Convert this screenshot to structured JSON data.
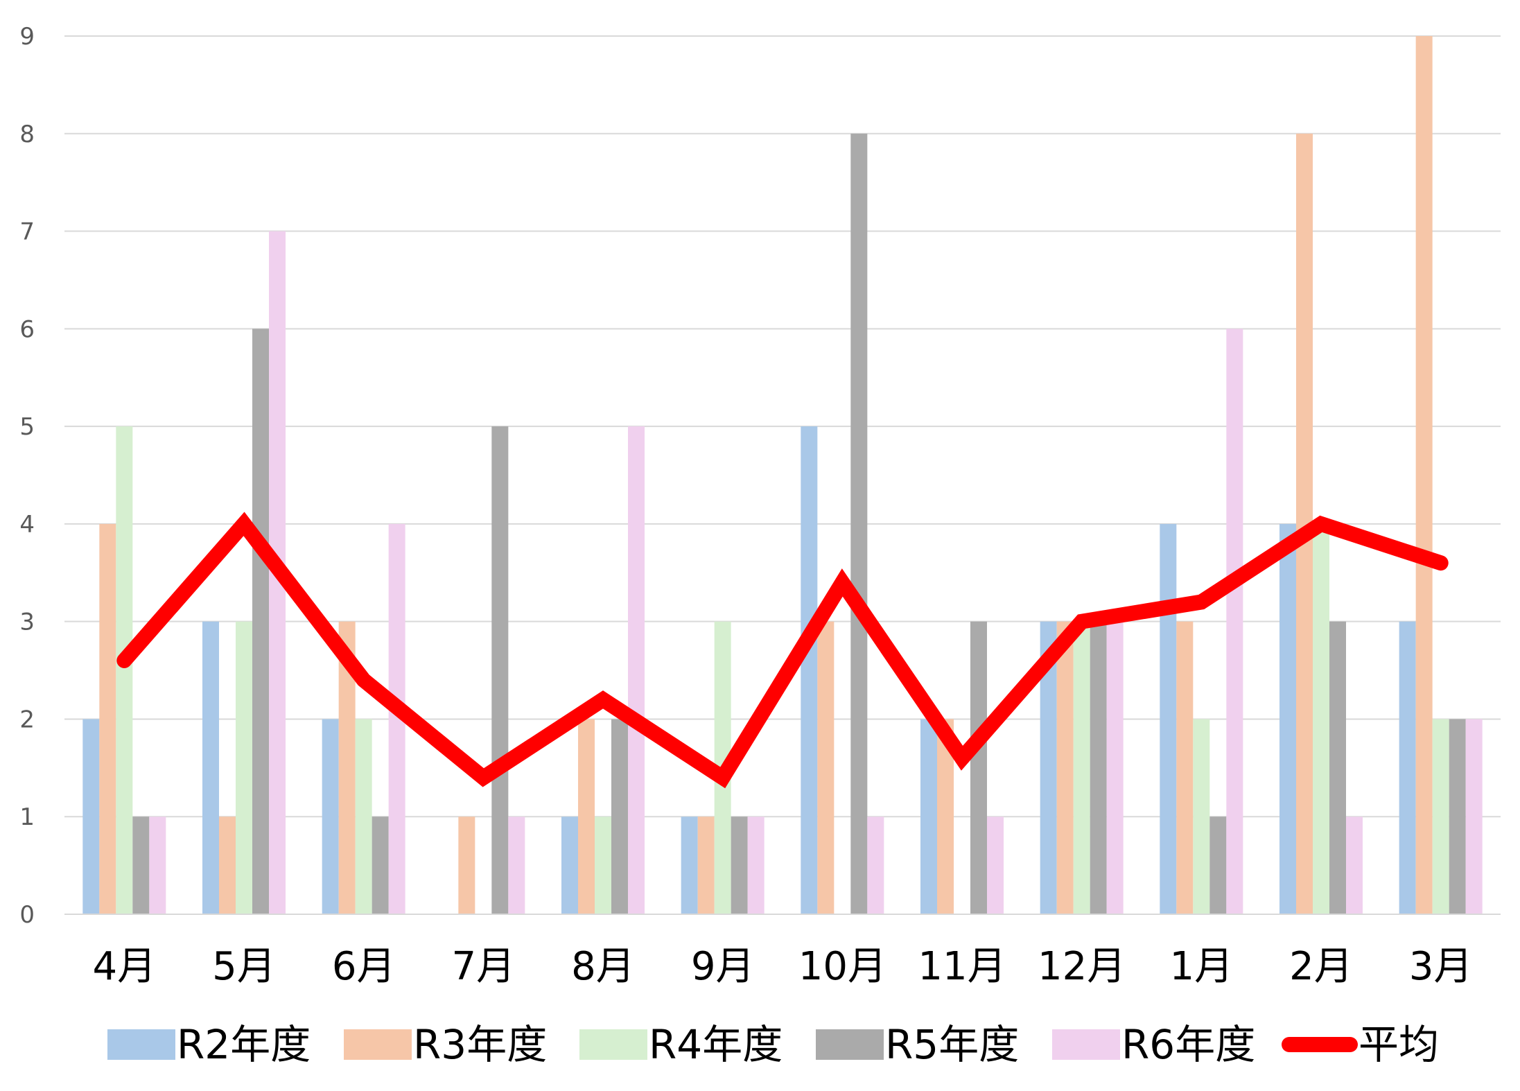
{
  "chart_data": {
    "type": "bar",
    "categories": [
      "4月",
      "5月",
      "6月",
      "7月",
      "8月",
      "9月",
      "10月",
      "11月",
      "12月",
      "1月",
      "2月",
      "3月"
    ],
    "ylim": [
      0,
      9
    ],
    "yticks": [
      0,
      1,
      2,
      3,
      4,
      5,
      6,
      7,
      8,
      9
    ],
    "ytick_labels": [
      "0",
      "1",
      "2",
      "3",
      "4",
      "5",
      "6",
      "7",
      "8",
      "9"
    ],
    "grid": true,
    "legend_position": "bottom",
    "series": [
      {
        "name": "R2年度",
        "type": "bar",
        "color": "#A9C8E8",
        "values": [
          2,
          3,
          2,
          0,
          1,
          1,
          5,
          2,
          3,
          4,
          4,
          3
        ]
      },
      {
        "name": "R3年度",
        "type": "bar",
        "color": "#F6C6A8",
        "values": [
          4,
          1,
          3,
          1,
          2,
          1,
          3,
          2,
          3,
          3,
          8,
          9
        ]
      },
      {
        "name": "R4年度",
        "type": "bar",
        "color": "#D6EFD0",
        "values": [
          5,
          3,
          2,
          0,
          1,
          3,
          0,
          0,
          3,
          2,
          4,
          2
        ]
      },
      {
        "name": "R5年度",
        "type": "bar",
        "color": "#AAAAAA",
        "values": [
          1,
          6,
          1,
          5,
          2,
          1,
          8,
          3,
          3,
          1,
          3,
          2
        ]
      },
      {
        "name": "R6年度",
        "type": "bar",
        "color": "#F0D0EE",
        "values": [
          1,
          7,
          4,
          1,
          5,
          1,
          1,
          1,
          3,
          6,
          1,
          2
        ]
      },
      {
        "name": "平均",
        "type": "line",
        "color": "#FF0000",
        "values": [
          2.6,
          4.0,
          2.4,
          1.4,
          2.2,
          1.4,
          3.4,
          1.6,
          3.0,
          3.2,
          4.0,
          3.6
        ]
      }
    ]
  }
}
